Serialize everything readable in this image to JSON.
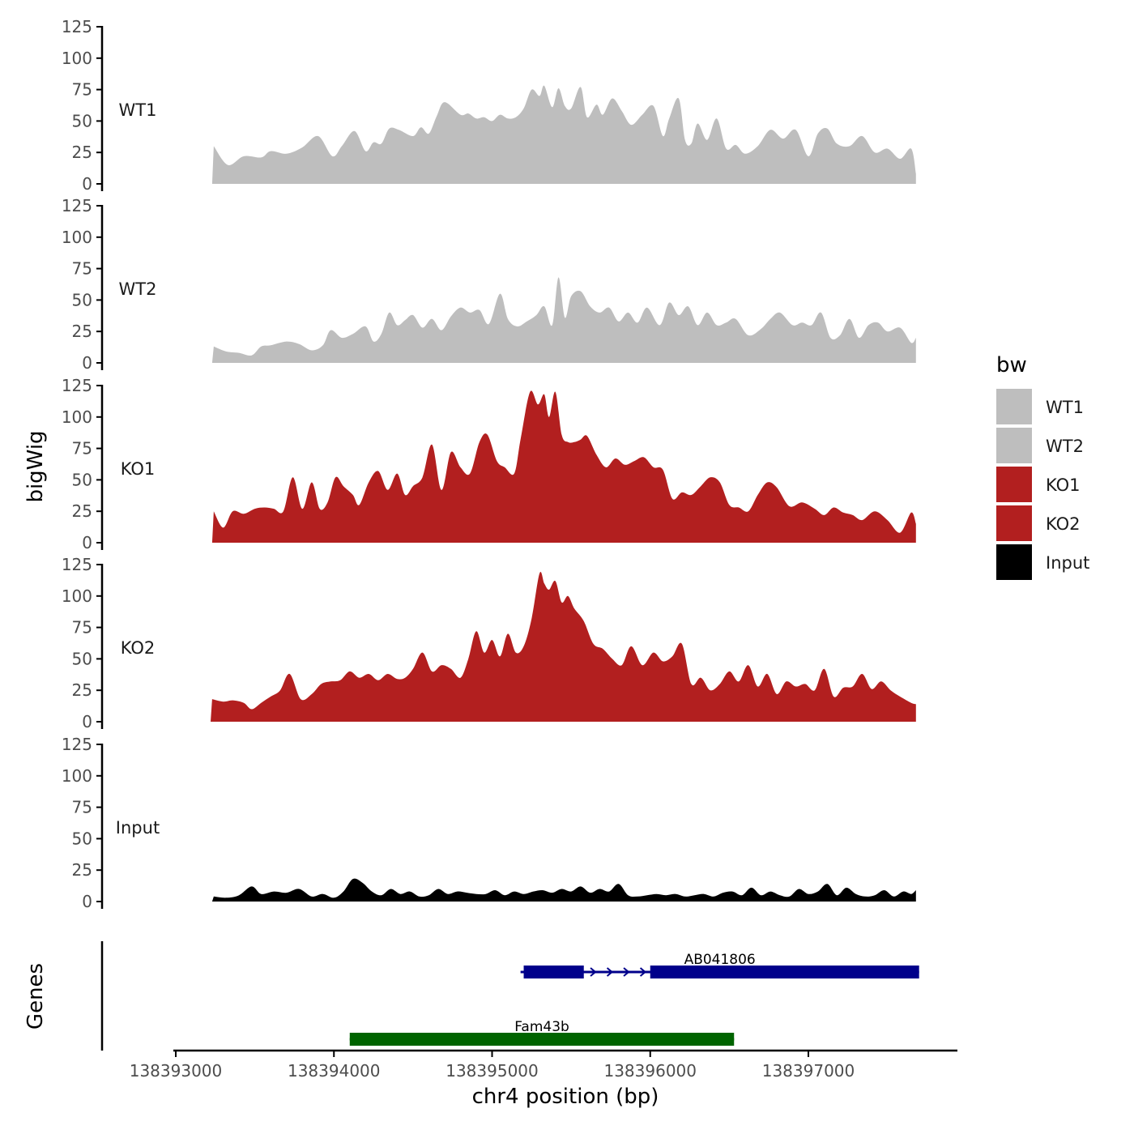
{
  "chart_data": {
    "type": "area",
    "ylabel": "bigWig",
    "xlabel": "chr4 position (bp)",
    "ylim": [
      0,
      125
    ],
    "yticks": [
      0,
      25,
      50,
      75,
      100,
      125
    ],
    "xlim": [
      138393000,
      138397930
    ],
    "xticks": [
      138393000,
      138394000,
      138395000,
      138396000,
      138397000
    ],
    "grid": false,
    "legend": {
      "title": "bw",
      "placement": "right",
      "entries": [
        {
          "label": "WT1",
          "color": "#bebebe"
        },
        {
          "label": "WT2",
          "color": "#bebebe"
        },
        {
          "label": "KO1",
          "color": "#b21f1f"
        },
        {
          "label": "KO2",
          "color": "#b21f1f"
        },
        {
          "label": "Input",
          "color": "#000000"
        }
      ]
    },
    "series": [
      {
        "name": "WT1",
        "color": "#bebebe",
        "x": [
          138393240,
          138393330,
          138393430,
          138393540,
          138393600,
          138393700,
          138393800,
          138393900,
          138393990,
          138394050,
          138394130,
          138394200,
          138394250,
          138394300,
          138394350,
          138394410,
          138394500,
          138394550,
          138394600,
          138394650,
          138394700,
          138394800,
          138394850,
          138394900,
          138394950,
          138395000,
          138395050,
          138395100,
          138395150,
          138395200,
          138395250,
          138395300,
          138395330,
          138395380,
          138395420,
          138395460,
          138395500,
          138395560,
          138395600,
          138395660,
          138395700,
          138395760,
          138395820,
          138395880,
          138395950,
          138396020,
          138396080,
          138396120,
          138396180,
          138396220,
          138396260,
          138396300,
          138396360,
          138396420,
          138396480,
          138396540,
          138396600,
          138396680,
          138396760,
          138396840,
          138396920,
          138397000,
          138397060,
          138397120,
          138397180,
          138397260,
          138397340,
          138397420,
          138397500,
          138397580,
          138397650,
          138397680
        ],
        "values": [
          30,
          15,
          22,
          21,
          26,
          24,
          29,
          38,
          22,
          30,
          42,
          26,
          33,
          32,
          44,
          43,
          38,
          45,
          40,
          54,
          65,
          55,
          56,
          52,
          53,
          50,
          55,
          52,
          53,
          60,
          75,
          70,
          78,
          61,
          76,
          62,
          60,
          77,
          53,
          63,
          55,
          68,
          58,
          47,
          55,
          62,
          38,
          52,
          68,
          35,
          32,
          48,
          35,
          52,
          28,
          31,
          24,
          30,
          43,
          36,
          43,
          22,
          40,
          44,
          32,
          30,
          38,
          25,
          28,
          20,
          28,
          8
        ],
        "x_start": 138393230,
        "x_end": 138397680
      },
      {
        "name": "WT2",
        "color": "#bebebe",
        "x": [
          138393240,
          138393320,
          138393400,
          138393480,
          138393540,
          138393600,
          138393700,
          138393780,
          138393860,
          138393930,
          138393980,
          138394050,
          138394120,
          138394200,
          138394250,
          138394300,
          138394350,
          138394400,
          138394450,
          138394500,
          138394560,
          138394620,
          138394680,
          138394740,
          138394800,
          138394860,
          138394920,
          138394980,
          138395050,
          138395100,
          138395160,
          138395220,
          138395280,
          138395330,
          138395380,
          138395420,
          138395460,
          138395500,
          138395560,
          138395620,
          138395680,
          138395740,
          138395800,
          138395860,
          138395920,
          138395980,
          138396060,
          138396120,
          138396180,
          138396240,
          138396300,
          138396360,
          138396420,
          138396480,
          138396540,
          138396620,
          138396700,
          138396760,
          138396820,
          138396900,
          138396960,
          138397020,
          138397080,
          138397140,
          138397200,
          138397260,
          138397320,
          138397380,
          138397440,
          138397500,
          138397580,
          138397650,
          138397680
        ],
        "values": [
          13,
          9,
          8,
          6,
          13,
          14,
          17,
          15,
          10,
          14,
          26,
          20,
          23,
          29,
          17,
          23,
          40,
          30,
          34,
          38,
          28,
          35,
          26,
          37,
          44,
          40,
          42,
          31,
          55,
          35,
          29,
          33,
          38,
          45,
          30,
          68,
          36,
          53,
          57,
          45,
          40,
          44,
          33,
          40,
          32,
          44,
          30,
          48,
          38,
          45,
          30,
          40,
          30,
          32,
          35,
          22,
          27,
          35,
          40,
          30,
          32,
          30,
          40,
          20,
          22,
          35,
          20,
          30,
          32,
          25,
          28,
          16,
          20
        ],
        "x_start": 138393230,
        "x_end": 138397680
      },
      {
        "name": "KO1",
        "color": "#b21f1f",
        "x": [
          138393240,
          138393300,
          138393360,
          138393430,
          138393500,
          138393560,
          138393620,
          138393680,
          138393740,
          138393800,
          138393860,
          138393910,
          138393960,
          138394010,
          138394060,
          138394120,
          138394160,
          138394220,
          138394280,
          138394340,
          138394400,
          138394450,
          138394500,
          138394560,
          138394620,
          138394680,
          138394740,
          138394800,
          138394860,
          138394920,
          138394970,
          138395030,
          138395080,
          138395140,
          138395180,
          138395240,
          138395290,
          138395330,
          138395360,
          138395400,
          138395440,
          138395480,
          138395520,
          138395560,
          138395600,
          138395660,
          138395720,
          138395780,
          138395840,
          138395900,
          138395960,
          138396020,
          138396080,
          138396140,
          138396200,
          138396260,
          138396320,
          138396380,
          138396440,
          138396500,
          138396560,
          138396620,
          138396680,
          138396740,
          138396800,
          138396880,
          138396960,
          138397040,
          138397100,
          138397160,
          138397220,
          138397280,
          138397340,
          138397420,
          138397500,
          138397580,
          138397650,
          138397680
        ],
        "values": [
          25,
          12,
          25,
          23,
          27,
          28,
          27,
          25,
          52,
          27,
          48,
          27,
          32,
          52,
          45,
          38,
          30,
          48,
          57,
          42,
          55,
          38,
          45,
          52,
          78,
          42,
          72,
          60,
          55,
          80,
          86,
          65,
          60,
          55,
          82,
          120,
          110,
          118,
          100,
          120,
          86,
          80,
          80,
          82,
          85,
          70,
          60,
          67,
          62,
          65,
          68,
          60,
          58,
          35,
          40,
          38,
          45,
          52,
          48,
          30,
          28,
          25,
          38,
          48,
          44,
          29,
          32,
          27,
          22,
          28,
          24,
          22,
          18,
          25,
          18,
          8,
          24,
          15
        ],
        "x_start": 138393230,
        "x_end": 138397680
      },
      {
        "name": "KO2",
        "color": "#b21f1f",
        "x": [
          138393230,
          138393300,
          138393360,
          138393430,
          138393480,
          138393540,
          138393600,
          138393660,
          138393720,
          138393790,
          138393860,
          138393920,
          138393980,
          138394040,
          138394100,
          138394160,
          138394220,
          138394280,
          138394340,
          138394400,
          138394450,
          138394500,
          138394560,
          138394620,
          138394680,
          138394740,
          138394800,
          138394850,
          138394900,
          138394950,
          138395000,
          138395050,
          138395100,
          138395150,
          138395200,
          138395250,
          138395300,
          138395330,
          138395360,
          138395400,
          138395440,
          138395480,
          138395520,
          138395580,
          138395640,
          138395700,
          138395760,
          138395820,
          138395880,
          138395950,
          138396020,
          138396080,
          138396140,
          138396200,
          138396260,
          138396320,
          138396380,
          138396440,
          138396500,
          138396560,
          138396620,
          138396680,
          138396740,
          138396800,
          138396860,
          138396920,
          138396980,
          138397040,
          138397100,
          138397160,
          138397220,
          138397280,
          138397340,
          138397400,
          138397460,
          138397520,
          138397580,
          138397650,
          138397680
        ],
        "values": [
          18,
          16,
          17,
          15,
          10,
          15,
          20,
          25,
          38,
          18,
          22,
          30,
          32,
          33,
          40,
          35,
          38,
          33,
          38,
          34,
          35,
          42,
          55,
          40,
          45,
          42,
          35,
          50,
          72,
          55,
          65,
          52,
          70,
          55,
          60,
          82,
          118,
          110,
          105,
          112,
          95,
          100,
          90,
          80,
          62,
          58,
          50,
          45,
          60,
          45,
          55,
          48,
          52,
          62,
          30,
          35,
          25,
          30,
          40,
          32,
          45,
          28,
          38,
          22,
          32,
          28,
          30,
          25,
          42,
          20,
          27,
          28,
          38,
          26,
          32,
          25,
          20,
          15,
          14
        ],
        "x_start": 138393220,
        "x_end": 138397680
      },
      {
        "name": "Input",
        "color": "#000000",
        "x": [
          138393240,
          138393320,
          138393400,
          138393480,
          138393540,
          138393620,
          138393700,
          138393780,
          138393860,
          138393930,
          138394000,
          138394060,
          138394120,
          138394180,
          138394240,
          138394300,
          138394360,
          138394420,
          138394480,
          138394540,
          138394600,
          138394660,
          138394720,
          138394780,
          138394840,
          138394900,
          138394960,
          138395020,
          138395080,
          138395140,
          138395200,
          138395260,
          138395320,
          138395380,
          138395440,
          138395500,
          138395560,
          138395620,
          138395680,
          138395740,
          138395800,
          138395860,
          138395920,
          138395980,
          138396040,
          138396100,
          138396160,
          138396220,
          138396280,
          138396340,
          138396400,
          138396460,
          138396520,
          138396580,
          138396640,
          138396700,
          138396760,
          138396820,
          138396880,
          138396940,
          138397000,
          138397060,
          138397120,
          138397180,
          138397240,
          138397300,
          138397360,
          138397420,
          138397480,
          138397540,
          138397600,
          138397650,
          138397680
        ],
        "values": [
          4,
          3,
          5,
          12,
          6,
          8,
          7,
          10,
          4,
          6,
          3,
          8,
          18,
          15,
          8,
          5,
          10,
          6,
          8,
          4,
          5,
          10,
          6,
          8,
          7,
          6,
          6,
          9,
          5,
          8,
          6,
          8,
          9,
          7,
          10,
          8,
          12,
          7,
          10,
          8,
          14,
          5,
          4,
          5,
          6,
          5,
          6,
          4,
          5,
          6,
          4,
          7,
          8,
          5,
          11,
          5,
          8,
          5,
          4,
          10,
          6,
          8,
          14,
          5,
          11,
          6,
          4,
          5,
          9,
          4,
          8,
          6,
          9
        ],
        "x_start": 138393230,
        "x_end": 138397680
      }
    ],
    "genes": [
      {
        "name": "AB041806",
        "start": 138395180,
        "end": 138397700,
        "color": "#00008b",
        "exons": [
          [
            138395200,
            138395580
          ],
          [
            138396000,
            138397700
          ]
        ],
        "strand": "+"
      },
      {
        "name": "Fam43b",
        "start": 138394100,
        "end": 138396530,
        "color": "#006400",
        "exons": [
          [
            138394100,
            138396530
          ]
        ],
        "strand": "+"
      }
    ],
    "genes_ylabel": "Genes"
  }
}
